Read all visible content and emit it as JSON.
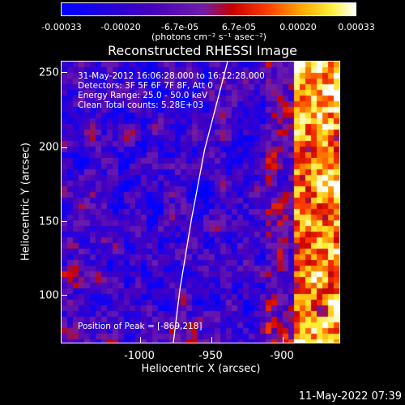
{
  "colorbar": {
    "ticks": [
      "-0.00033",
      "-0.00020",
      "-6.7e-05",
      "6.7e-05",
      "0.00020",
      "0.00033"
    ],
    "unit": "(photons cm⁻² s⁻¹ asec⁻²)",
    "range": [
      -0.00033,
      0.00033
    ]
  },
  "title": "Reconstructed RHESSI Image",
  "info": {
    "time": "31-May-2012 16:06:28.000 to 16:12:28.000",
    "detectors": "Detectors: 3F 5F 6F 7F 8F, Att 0",
    "energy": "Energy Range: 25.0 - 50.0 keV",
    "clean": "Clean     Total counts: 5.28E+03",
    "peak": "Position of Peak = [-869,218]"
  },
  "axes": {
    "xlabel": "Heliocentric X (arcsec)",
    "ylabel": "Heliocentric Y (arcsec)",
    "xticks": [
      "-1000",
      "-950",
      "-900"
    ],
    "yticks": [
      "250",
      "200",
      "150",
      "100"
    ],
    "xrange": [
      -1032,
      -863
    ],
    "yrange": [
      62,
      263
    ]
  },
  "limb": [
    [
      -964,
      62
    ],
    [
      -960,
      100
    ],
    [
      -953,
      150
    ],
    [
      -945,
      200
    ],
    [
      -931,
      263
    ]
  ],
  "timestamp": "11-May-2022 07:39",
  "palette": [
    "#0000ff",
    "#5a00b4",
    "#b00000",
    "#ff8c00",
    "#ffffff"
  ]
}
